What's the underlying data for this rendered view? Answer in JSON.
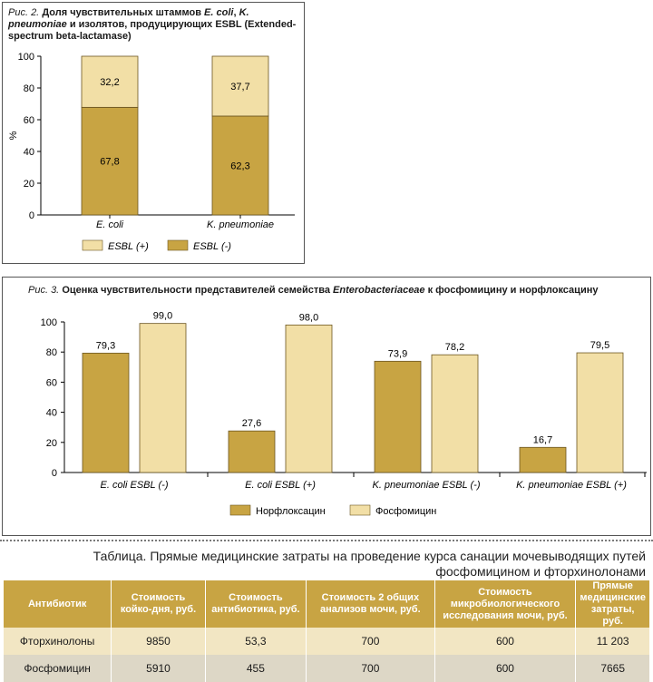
{
  "chart_data": [
    {
      "type": "bar",
      "stacked": true,
      "caption_label": "Рис. 2.",
      "title_pre": "Доля чувствительных штаммов ",
      "title_em1": "E. coli",
      "title_mid": ", ",
      "title_em2": "K. pneumoniae",
      "title_post": " и изолятов, продуцирующих ESBL (Extended-spectrum beta-lactamase)",
      "ylabel": "%",
      "ylim": [
        0,
        100
      ],
      "yticks": [
        0,
        20,
        40,
        60,
        80,
        100
      ],
      "categories": [
        "E. coli",
        "K. pneumoniae"
      ],
      "series": [
        {
          "name": "ESBL (-)",
          "values": [
            67.8,
            62.3
          ],
          "labels": [
            "67,8",
            "62,3"
          ],
          "color": "#c8a443"
        },
        {
          "name": "ESBL (+)",
          "values": [
            32.2,
            37.7
          ],
          "labels": [
            "32,2",
            "37,7"
          ],
          "color": "#f2dfa6"
        }
      ],
      "legend": [
        {
          "name": "ESBL (+)",
          "color": "#f2dfa6"
        },
        {
          "name": "ESBL (-)",
          "color": "#c8a443"
        }
      ]
    },
    {
      "type": "bar",
      "stacked": false,
      "caption_label": "Рис. 3.",
      "title_pre": "Оценка чувствительности представителей семейства ",
      "title_em": "Enterobacteriaceae",
      "title_post": " к фосфомицину и норфлоксацину",
      "ylim": [
        0,
        100
      ],
      "yticks": [
        0,
        20,
        40,
        60,
        80,
        100
      ],
      "categories": [
        "E. coli ESBL (-)",
        "E. coli ESBL (+)",
        "K. pneumoniae ESBL (-)",
        "K. pneumoniae ESBL (+)"
      ],
      "series": [
        {
          "name": "Норфлоксацин",
          "values": [
            79.3,
            27.6,
            73.9,
            16.7
          ],
          "labels": [
            "79,3",
            "27,6",
            "73,9",
            "16,7"
          ],
          "color": "#c8a443"
        },
        {
          "name": "Фосфомицин",
          "values": [
            99.0,
            98.0,
            78.2,
            79.5
          ],
          "labels": [
            "99,0",
            "98,0",
            "78,2",
            "79,5"
          ],
          "color": "#f2dfa6"
        }
      ]
    }
  ],
  "table": {
    "title_line1": "Таблица. Прямые медицинские затраты на проведение курса санации мочевыводящих путей",
    "title_line2": "фосфомицином и фторхинолонами",
    "headers": [
      "Антибиотик",
      "Стоимость койко-дня, руб.",
      "Стоимость антибиотика, руб.",
      "Стоимость 2 общих анализов мочи, руб.",
      "Стоимость микробиологического исследования мочи, руб.",
      "Прямые медицинские затраты, руб."
    ],
    "rows": [
      [
        "Фторхинолоны",
        "9850",
        "53,3",
        "700",
        "600",
        "11 203"
      ],
      [
        "Фосфомицин",
        "5910",
        "455",
        "700",
        "600",
        "7665"
      ]
    ]
  }
}
